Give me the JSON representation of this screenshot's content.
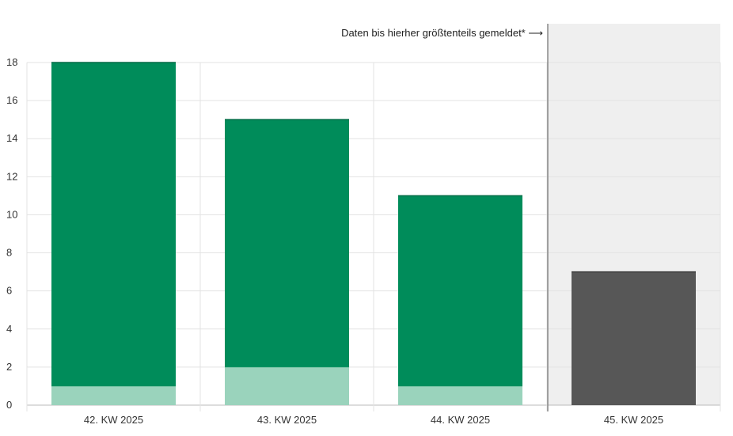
{
  "chart_data": {
    "type": "bar",
    "stacked": true,
    "categories": [
      "42. KW 2025",
      "43. KW 2025",
      "44. KW 2025",
      "45. KW 2025"
    ],
    "series": [
      {
        "color": "#9ad3bc",
        "values": [
          1,
          2,
          1,
          0
        ]
      },
      {
        "color": "#008c5a",
        "values": [
          17,
          13,
          10,
          0
        ]
      },
      {
        "color": "#575757",
        "values": [
          0,
          0,
          0,
          7
        ]
      }
    ],
    "ylim": [
      0,
      18
    ],
    "yticks": [
      0,
      2,
      4,
      6,
      8,
      10,
      12,
      14,
      16,
      18
    ],
    "grid": true,
    "annotation": "Daten bis hierher größtenteils gemeldet* ⟶",
    "shaded_category_index": 3,
    "shade_color": "#efefef"
  }
}
